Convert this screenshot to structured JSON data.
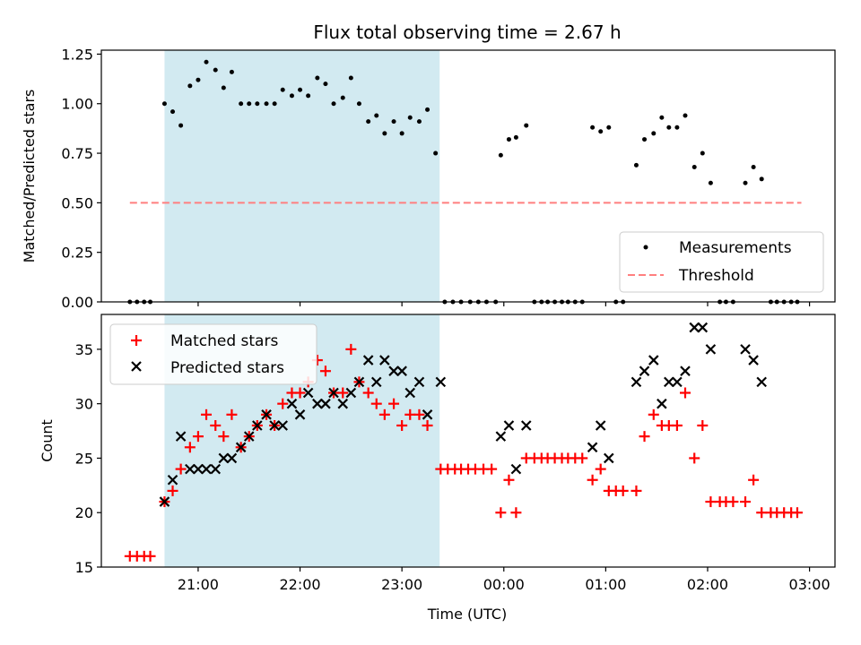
{
  "chart_data": {
    "type": "scatter",
    "title": "Flux total observing time = 2.67 h",
    "xlabel": "Time (UTC)",
    "x_units": "hours since 00:00 UTC (negative = previous day)",
    "xlim": [
      -3.95,
      3.25
    ],
    "x_ticks": [
      {
        "value": -3,
        "label": "21:00"
      },
      {
        "value": -2,
        "label": "22:00"
      },
      {
        "value": -1,
        "label": "23:00"
      },
      {
        "value": 0,
        "label": "00:00"
      },
      {
        "value": 1,
        "label": "01:00"
      },
      {
        "value": 2,
        "label": "02:00"
      },
      {
        "value": 3,
        "label": "03:00"
      }
    ],
    "shaded_interval": {
      "start": -3.33,
      "end": -0.63,
      "color": "#add8e6"
    },
    "panels": [
      {
        "ylabel": "Matched/Predicted stars",
        "ylim": [
          0,
          1.27
        ],
        "y_ticks": [
          "0.00",
          "0.25",
          "0.50",
          "0.75",
          "1.00",
          "1.25"
        ],
        "legend": {
          "position": "lower right",
          "entries": [
            {
              "label": "Measurements",
              "marker": "dot",
              "color": "#000000"
            },
            {
              "label": "Threshold",
              "marker": "dashed-line",
              "color": "#ff7f7f"
            }
          ]
        },
        "threshold": {
          "value": 0.5,
          "x_start": -3.67,
          "x_end": 2.92
        },
        "series": [
          {
            "name": "Measurements",
            "color": "#000000",
            "points": [
              [
                -3.67,
                0
              ],
              [
                -3.6,
                0
              ],
              [
                -3.53,
                0
              ],
              [
                -3.47,
                0
              ],
              [
                -3.33,
                1.0
              ],
              [
                -3.25,
                0.96
              ],
              [
                -3.17,
                0.89
              ],
              [
                -3.08,
                1.09
              ],
              [
                -3.0,
                1.12
              ],
              [
                -2.92,
                1.21
              ],
              [
                -2.83,
                1.17
              ],
              [
                -2.75,
                1.08
              ],
              [
                -2.67,
                1.16
              ],
              [
                -2.58,
                1.0
              ],
              [
                -2.5,
                1.0
              ],
              [
                -2.42,
                1.0
              ],
              [
                -2.33,
                1.0
              ],
              [
                -2.25,
                1.0
              ],
              [
                -2.17,
                1.07
              ],
              [
                -2.08,
                1.04
              ],
              [
                -2.0,
                1.07
              ],
              [
                -1.92,
                1.04
              ],
              [
                -1.83,
                1.13
              ],
              [
                -1.75,
                1.1
              ],
              [
                -1.67,
                1.0
              ],
              [
                -1.58,
                1.03
              ],
              [
                -1.5,
                1.13
              ],
              [
                -1.42,
                1.0
              ],
              [
                -1.33,
                0.91
              ],
              [
                -1.25,
                0.94
              ],
              [
                -1.17,
                0.85
              ],
              [
                -1.08,
                0.91
              ],
              [
                -1.0,
                0.85
              ],
              [
                -0.92,
                0.93
              ],
              [
                -0.83,
                0.91
              ],
              [
                -0.75,
                0.97
              ],
              [
                -0.67,
                0.75
              ],
              [
                -0.58,
                0
              ],
              [
                -0.5,
                0
              ],
              [
                -0.42,
                0
              ],
              [
                -0.33,
                0
              ],
              [
                -0.25,
                0
              ],
              [
                -0.17,
                0
              ],
              [
                -0.08,
                0
              ],
              [
                -0.03,
                0.74
              ],
              [
                0.05,
                0.82
              ],
              [
                0.12,
                0.83
              ],
              [
                0.22,
                0.89
              ],
              [
                0.3,
                0
              ],
              [
                0.37,
                0
              ],
              [
                0.43,
                0
              ],
              [
                0.5,
                0
              ],
              [
                0.57,
                0
              ],
              [
                0.63,
                0
              ],
              [
                0.7,
                0
              ],
              [
                0.77,
                0
              ],
              [
                0.87,
                0.88
              ],
              [
                0.95,
                0.86
              ],
              [
                1.03,
                0.88
              ],
              [
                1.1,
                0
              ],
              [
                1.17,
                0
              ],
              [
                1.3,
                0.69
              ],
              [
                1.38,
                0.82
              ],
              [
                1.47,
                0.85
              ],
              [
                1.55,
                0.93
              ],
              [
                1.62,
                0.88
              ],
              [
                1.7,
                0.88
              ],
              [
                1.78,
                0.94
              ],
              [
                1.87,
                0.68
              ],
              [
                1.95,
                0.75
              ],
              [
                2.03,
                0.6
              ],
              [
                2.12,
                0
              ],
              [
                2.18,
                0
              ],
              [
                2.25,
                0
              ],
              [
                2.37,
                0.6
              ],
              [
                2.45,
                0.68
              ],
              [
                2.53,
                0.62
              ],
              [
                2.62,
                0
              ],
              [
                2.68,
                0
              ],
              [
                2.75,
                0
              ],
              [
                2.82,
                0
              ],
              [
                2.88,
                0
              ]
            ]
          }
        ]
      },
      {
        "ylabel": "Count",
        "ylim": [
          15,
          38.2
        ],
        "y_ticks": [
          "15",
          "20",
          "25",
          "30",
          "35"
        ],
        "legend": {
          "position": "upper left",
          "entries": [
            {
              "label": "Matched stars",
              "marker": "plus",
              "color": "#ff0000"
            },
            {
              "label": "Predicted stars",
              "marker": "x",
              "color": "#000000"
            }
          ]
        },
        "series": [
          {
            "name": "Matched stars",
            "marker": "plus",
            "color": "#ff0000",
            "points": [
              [
                -3.67,
                16
              ],
              [
                -3.6,
                16
              ],
              [
                -3.53,
                16
              ],
              [
                -3.47,
                16
              ],
              [
                -3.33,
                21
              ],
              [
                -3.25,
                22
              ],
              [
                -3.17,
                24
              ],
              [
                -3.08,
                26
              ],
              [
                -3.0,
                27
              ],
              [
                -2.92,
                29
              ],
              [
                -2.83,
                28
              ],
              [
                -2.75,
                27
              ],
              [
                -2.67,
                29
              ],
              [
                -2.58,
                26
              ],
              [
                -2.5,
                27
              ],
              [
                -2.42,
                28
              ],
              [
                -2.33,
                29
              ],
              [
                -2.25,
                28
              ],
              [
                -2.17,
                30
              ],
              [
                -2.08,
                31
              ],
              [
                -2.0,
                31
              ],
              [
                -1.92,
                32
              ],
              [
                -1.83,
                34
              ],
              [
                -1.75,
                33
              ],
              [
                -1.67,
                31
              ],
              [
                -1.58,
                31
              ],
              [
                -1.5,
                35
              ],
              [
                -1.42,
                32
              ],
              [
                -1.33,
                31
              ],
              [
                -1.25,
                30
              ],
              [
                -1.17,
                29
              ],
              [
                -1.08,
                30
              ],
              [
                -1.0,
                28
              ],
              [
                -0.92,
                29
              ],
              [
                -0.83,
                29
              ],
              [
                -0.75,
                28
              ],
              [
                -0.62,
                24
              ],
              [
                -0.55,
                24
              ],
              [
                -0.48,
                24
              ],
              [
                -0.42,
                24
              ],
              [
                -0.35,
                24
              ],
              [
                -0.28,
                24
              ],
              [
                -0.2,
                24
              ],
              [
                -0.12,
                24
              ],
              [
                -0.03,
                20
              ],
              [
                0.05,
                23
              ],
              [
                0.12,
                20
              ],
              [
                0.22,
                25
              ],
              [
                0.3,
                25
              ],
              [
                0.37,
                25
              ],
              [
                0.43,
                25
              ],
              [
                0.5,
                25
              ],
              [
                0.57,
                25
              ],
              [
                0.63,
                25
              ],
              [
                0.7,
                25
              ],
              [
                0.77,
                25
              ],
              [
                0.87,
                23
              ],
              [
                0.95,
                24
              ],
              [
                1.03,
                22
              ],
              [
                1.1,
                22
              ],
              [
                1.17,
                22
              ],
              [
                1.3,
                22
              ],
              [
                1.38,
                27
              ],
              [
                1.47,
                29
              ],
              [
                1.55,
                28
              ],
              [
                1.62,
                28
              ],
              [
                1.7,
                28
              ],
              [
                1.78,
                31
              ],
              [
                1.87,
                25
              ],
              [
                1.95,
                28
              ],
              [
                2.03,
                21
              ],
              [
                2.12,
                21
              ],
              [
                2.18,
                21
              ],
              [
                2.25,
                21
              ],
              [
                2.37,
                21
              ],
              [
                2.45,
                23
              ],
              [
                2.53,
                20
              ],
              [
                2.62,
                20
              ],
              [
                2.68,
                20
              ],
              [
                2.75,
                20
              ],
              [
                2.82,
                20
              ],
              [
                2.88,
                20
              ]
            ]
          },
          {
            "name": "Predicted stars",
            "marker": "x",
            "color": "#000000",
            "points": [
              [
                -3.33,
                21
              ],
              [
                -3.25,
                23
              ],
              [
                -3.17,
                27
              ],
              [
                -3.08,
                24
              ],
              [
                -3.0,
                24
              ],
              [
                -2.92,
                24
              ],
              [
                -2.83,
                24
              ],
              [
                -2.75,
                25
              ],
              [
                -2.67,
                25
              ],
              [
                -2.58,
                26
              ],
              [
                -2.5,
                27
              ],
              [
                -2.42,
                28
              ],
              [
                -2.33,
                29
              ],
              [
                -2.25,
                28
              ],
              [
                -2.17,
                28
              ],
              [
                -2.08,
                30
              ],
              [
                -2.0,
                29
              ],
              [
                -1.92,
                31
              ],
              [
                -1.83,
                30
              ],
              [
                -1.75,
                30
              ],
              [
                -1.67,
                31
              ],
              [
                -1.58,
                30
              ],
              [
                -1.5,
                31
              ],
              [
                -1.42,
                32
              ],
              [
                -1.33,
                34
              ],
              [
                -1.25,
                32
              ],
              [
                -1.17,
                34
              ],
              [
                -1.08,
                33
              ],
              [
                -1.0,
                33
              ],
              [
                -0.92,
                31
              ],
              [
                -0.83,
                32
              ],
              [
                -0.75,
                29
              ],
              [
                -0.62,
                32
              ],
              [
                -0.03,
                27
              ],
              [
                0.05,
                28
              ],
              [
                0.12,
                24
              ],
              [
                0.22,
                28
              ],
              [
                0.87,
                26
              ],
              [
                0.95,
                28
              ],
              [
                1.03,
                25
              ],
              [
                1.3,
                32
              ],
              [
                1.38,
                33
              ],
              [
                1.47,
                34
              ],
              [
                1.55,
                30
              ],
              [
                1.62,
                32
              ],
              [
                1.7,
                32
              ],
              [
                1.78,
                33
              ],
              [
                1.87,
                37
              ],
              [
                1.95,
                37
              ],
              [
                2.03,
                35
              ],
              [
                2.37,
                35
              ],
              [
                2.45,
                34
              ],
              [
                2.53,
                32
              ]
            ]
          }
        ]
      }
    ]
  }
}
